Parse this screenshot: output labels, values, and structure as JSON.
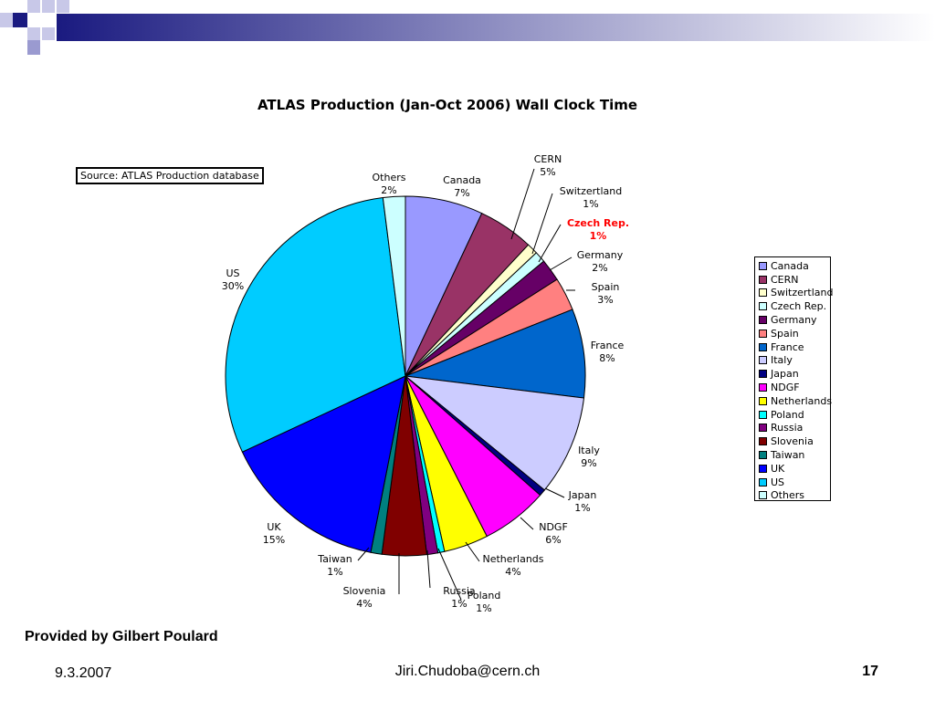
{
  "slide": {
    "source_note": "Source: ATLAS Production database",
    "provided_by": "Provided by Gilbert Poulard",
    "date": "9.3.2007",
    "email": "Jiri.Chudoba@cern.ch",
    "page_number": "17"
  },
  "chart_data": {
    "type": "pie",
    "title": "ATLAS Production (Jan-Oct 2006) Wall Clock Time",
    "legend_position": "right",
    "highlight_label": "Czech Rep.",
    "highlight_color": "#ff0000",
    "slices": [
      {
        "label": "Canada",
        "value": 7,
        "pct_label": "7%",
        "color": "#9999ff"
      },
      {
        "label": "CERN",
        "value": 5,
        "pct_label": "5%",
        "color": "#993366"
      },
      {
        "label": "Switzertland",
        "value": 1,
        "pct_label": "1%",
        "color": "#ffffcc"
      },
      {
        "label": "Czech Rep.",
        "value": 1,
        "pct_label": "1%",
        "color": "#ccffff"
      },
      {
        "label": "Germany",
        "value": 2,
        "pct_label": "2%",
        "color": "#660066"
      },
      {
        "label": "Spain",
        "value": 3,
        "pct_label": "3%",
        "color": "#ff8080"
      },
      {
        "label": "France",
        "value": 8,
        "pct_label": "8%",
        "color": "#0066cc"
      },
      {
        "label": "Italy",
        "value": 9,
        "pct_label": "9%",
        "color": "#ccccff"
      },
      {
        "label": "Japan",
        "value": 0.6,
        "pct_label": "1%",
        "color": "#000080"
      },
      {
        "label": "NDGF",
        "value": 6,
        "pct_label": "6%",
        "color": "#ff00ff"
      },
      {
        "label": "Netherlands",
        "value": 4,
        "pct_label": "4%",
        "color": "#ffff00"
      },
      {
        "label": "Poland",
        "value": 0.6,
        "pct_label": "1%",
        "color": "#00ffff"
      },
      {
        "label": "Russia",
        "value": 1,
        "pct_label": "1%",
        "color": "#800080"
      },
      {
        "label": "Slovenia",
        "value": 4,
        "pct_label": "4%",
        "color": "#800000"
      },
      {
        "label": "Taiwan",
        "value": 1,
        "pct_label": "1%",
        "color": "#008080"
      },
      {
        "label": "UK",
        "value": 15,
        "pct_label": "15%",
        "color": "#0000ff"
      },
      {
        "label": "US",
        "value": 30,
        "pct_label": "30%",
        "color": "#00ccff"
      },
      {
        "label": "Others",
        "value": 2,
        "pct_label": "2%",
        "color": "#ccffff"
      }
    ]
  }
}
